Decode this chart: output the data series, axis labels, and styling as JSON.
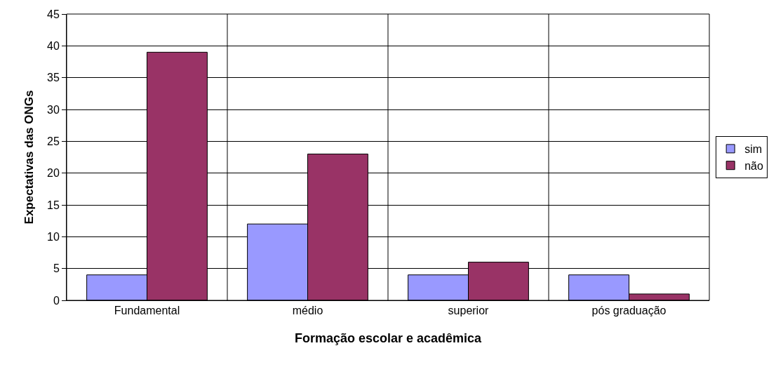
{
  "chart_data": {
    "type": "bar",
    "xlabel": "Formação escolar e acadêmica",
    "ylabel": "Expectativas das ONGs",
    "categories": [
      "Fundamental",
      "médio",
      "superior",
      "pós graduação"
    ],
    "series": [
      {
        "name": "sim",
        "color": "#9999ff",
        "values": [
          4,
          12,
          4,
          4
        ]
      },
      {
        "name": "não",
        "color": "#993366",
        "values": [
          39,
          23,
          6,
          1
        ]
      }
    ],
    "ylim": [
      0,
      45
    ],
    "yticks": [
      0,
      5,
      10,
      15,
      20,
      25,
      30,
      35,
      40,
      45
    ],
    "grid": true,
    "legend": "right"
  }
}
